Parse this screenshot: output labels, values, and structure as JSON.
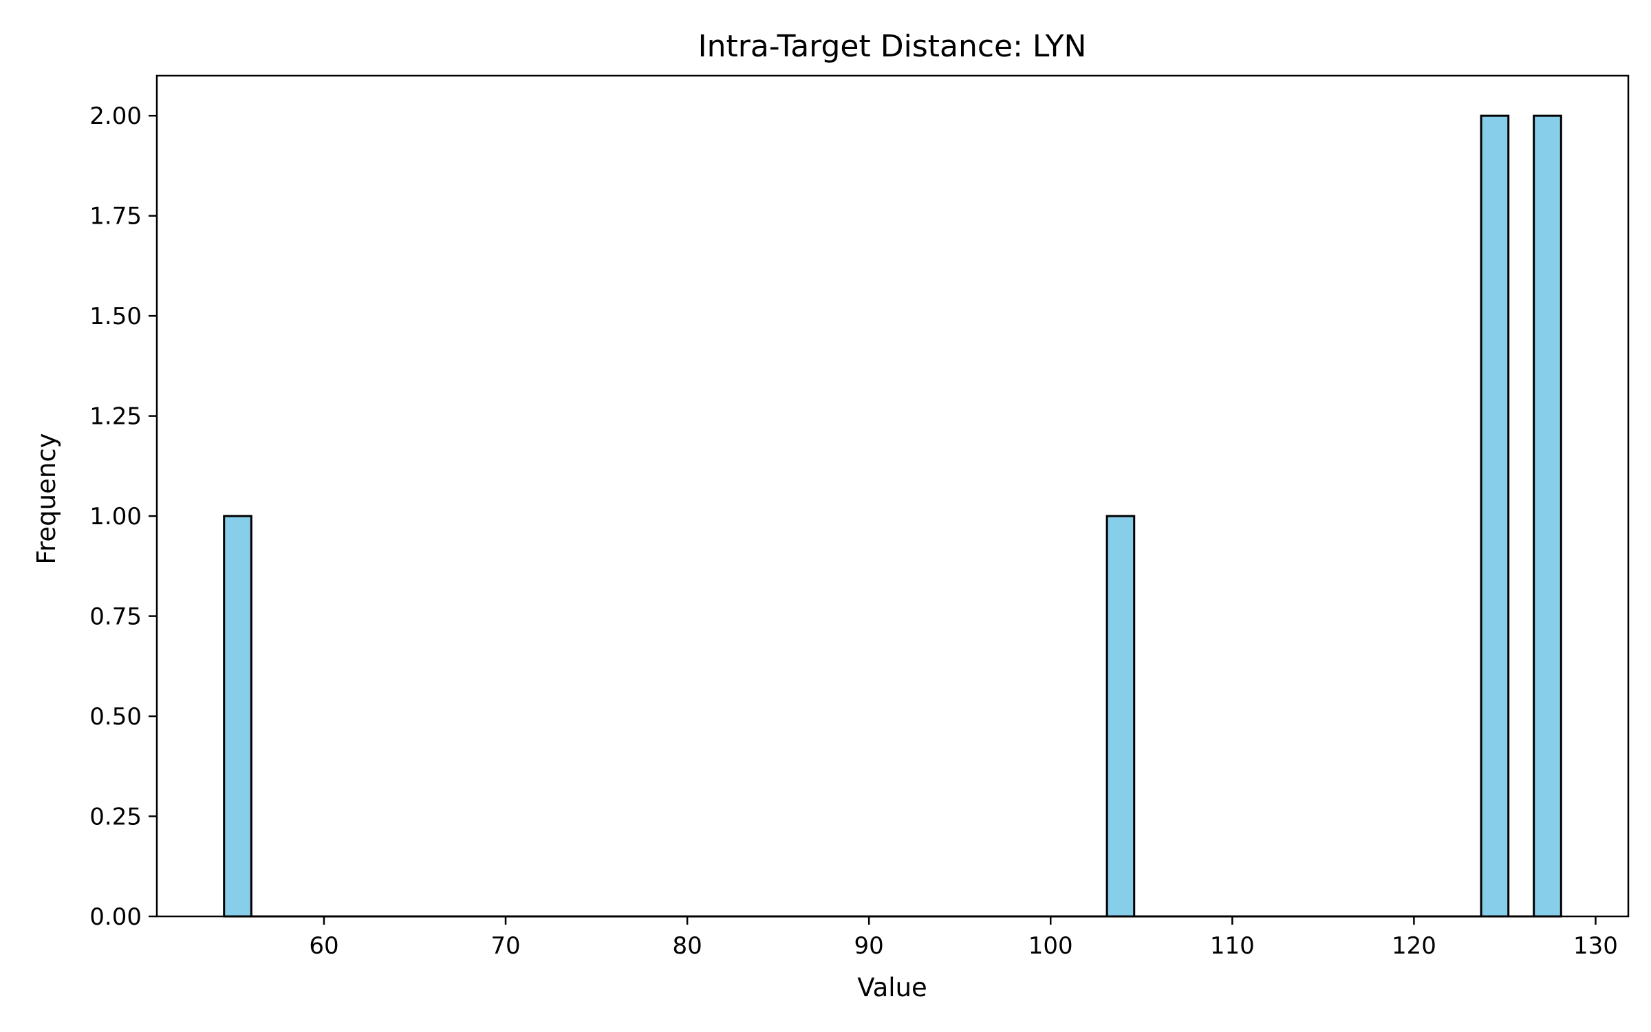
{
  "chart_data": {
    "type": "bar",
    "title": "Intra-Target Distance: LYN",
    "xlabel": "Value",
    "ylabel": "Frequency",
    "xlim": [
      50.8,
      131.8
    ],
    "ylim": [
      0,
      2.1
    ],
    "x_ticks": [
      60,
      70,
      80,
      90,
      100,
      110,
      120,
      130
    ],
    "y_ticks": [
      0,
      0.25,
      0.5,
      0.75,
      1.0,
      1.25,
      1.5,
      1.75,
      2.0
    ],
    "x_tick_labels": [
      "60",
      "70",
      "80",
      "90",
      "100",
      "110",
      "120",
      "130"
    ],
    "y_tick_labels": [
      "0.00",
      "0.25",
      "0.50",
      "0.75",
      "1.00",
      "1.25",
      "1.50",
      "1.75",
      "2.00"
    ],
    "bin_start": 54.5,
    "bin_width": 1.47,
    "bins": [
      {
        "start": 54.5,
        "end": 56.0,
        "count": 1
      },
      {
        "start": 103.1,
        "end": 104.6,
        "count": 1
      },
      {
        "start": 123.7,
        "end": 125.2,
        "count": 2
      },
      {
        "start": 126.6,
        "end": 128.1,
        "count": 2
      }
    ],
    "grid": false,
    "legend": "none",
    "colors": {
      "bar_fill": "#87CEEB",
      "bar_edge": "#000000",
      "axis": "#000000",
      "background": "#ffffff"
    }
  }
}
